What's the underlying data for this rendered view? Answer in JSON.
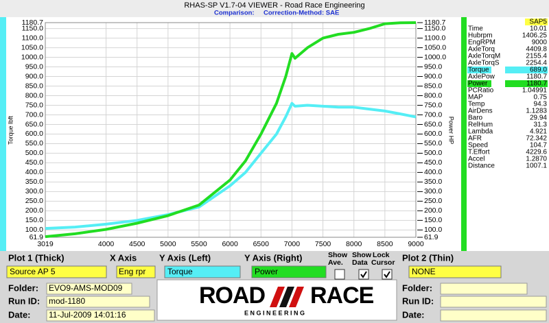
{
  "window": {
    "title": "RHAS-SP V1.7-04  VIEWER - Road Race Engineering",
    "comparison": "Comparison:",
    "correction": "Correction-Method: SAE"
  },
  "chart_data": {
    "type": "line",
    "x": [
      3019,
      3500,
      4000,
      4500,
      5000,
      5500,
      6000,
      6250,
      6500,
      6750,
      6900,
      7000,
      7050,
      7250,
      7500,
      7750,
      8000,
      8250,
      8500,
      8750,
      9000
    ],
    "series": [
      {
        "name": "Torque",
        "color": "#55eef5",
        "values": [
          108,
          115,
          130,
          150,
          180,
          220,
          330,
          400,
          500,
          600,
          690,
          760,
          745,
          750,
          745,
          740,
          740,
          730,
          720,
          705,
          689
        ]
      },
      {
        "name": "Power",
        "color": "#22dd22",
        "axis": "y2",
        "values": [
          65,
          80,
          103,
          135,
          175,
          230,
          360,
          460,
          600,
          760,
          900,
          1020,
          995,
          1050,
          1100,
          1120,
          1130,
          1150,
          1175,
          1180,
          1180.7
        ]
      }
    ],
    "xlim": [
      3019,
      9000
    ],
    "xticks": [
      3019,
      4000,
      4500,
      5000,
      5500,
      6000,
      6500,
      7000,
      7500,
      8000,
      8500,
      9000
    ],
    "ylim": [
      61.9,
      1180.7
    ],
    "yticks": [
      61.9,
      {
        "value": 100,
        "label": "100.0"
      },
      {
        "value": 150,
        "label": "150.0"
      },
      {
        "value": 200,
        "label": "200.0"
      },
      {
        "value": 250,
        "label": "250.0"
      },
      {
        "value": 300,
        "label": "300.0"
      },
      {
        "value": 350,
        "label": "350.0"
      },
      {
        "value": 400,
        "label": "400.0"
      },
      {
        "value": 450,
        "label": "450.0"
      },
      {
        "value": 500,
        "label": "500.0"
      },
      {
        "value": 550,
        "label": "550.0"
      },
      {
        "value": 600,
        "label": "600.0"
      },
      {
        "value": 650,
        "label": "650.0"
      },
      {
        "value": 700,
        "label": "700.0"
      },
      {
        "value": 750,
        "label": "750.0"
      },
      {
        "value": 800,
        "label": "800.0"
      },
      {
        "value": 850,
        "label": "850.0"
      },
      {
        "value": 900,
        "label": "900.0"
      },
      {
        "value": 950,
        "label": "950.0"
      },
      {
        "value": 1000,
        "label": "1000.0"
      },
      {
        "value": 1050,
        "label": "1050.0"
      },
      {
        "value": 1100,
        "label": "1100.0"
      },
      {
        "value": 1150,
        "label": "1150.0"
      },
      1180.7
    ],
    "y2lim": [
      61.9,
      1180.7
    ],
    "y2ticks": [
      61.9,
      {
        "value": 100,
        "label": "100.0"
      },
      {
        "value": 150,
        "label": "150.0"
      },
      {
        "value": 200,
        "label": "200.0"
      },
      {
        "value": 250,
        "label": "250.0"
      },
      {
        "value": 300,
        "label": "300.0"
      },
      {
        "value": 350,
        "label": "350.0"
      },
      {
        "value": 400,
        "label": "400.0"
      },
      {
        "value": 450,
        "label": "450.0"
      },
      {
        "value": 500,
        "label": "500.0"
      },
      {
        "value": 550,
        "label": "550.0"
      },
      {
        "value": 600,
        "label": "600.0"
      },
      {
        "value": 650,
        "label": "650.0"
      },
      {
        "value": 700,
        "label": "700.0"
      },
      {
        "value": 750,
        "label": "750.0"
      },
      {
        "value": 800,
        "label": "800.0"
      },
      {
        "value": 850,
        "label": "850.0"
      },
      {
        "value": 900,
        "label": "900.0"
      },
      {
        "value": 950,
        "label": "950.0"
      },
      {
        "value": 1000,
        "label": "1000.0"
      },
      {
        "value": 1050,
        "label": "1050.0"
      },
      {
        "value": 1100,
        "label": "1100.0"
      },
      {
        "value": 1150,
        "label": "1150.0"
      },
      1180.7
    ],
    "y_label": "Torque lbft",
    "y2_label": "Power HP",
    "grid": true
  },
  "readout": {
    "header": "SAP5",
    "rows": [
      [
        "Time",
        "10.01"
      ],
      [
        "Hubrpm",
        "1406.25"
      ],
      [
        "EngRPM",
        "9000"
      ],
      [
        "AxleTorq",
        "4409.8"
      ],
      [
        "AxleTorqM",
        "2155.4"
      ],
      [
        "AxleTorqS",
        "2254.4"
      ],
      [
        "Torque",
        "689.0"
      ],
      [
        "AxlePow",
        "1180.7"
      ],
      [
        "Power",
        "1180.7"
      ],
      [
        "PCRatio",
        "1.04991"
      ],
      [
        "MAP",
        "0.75"
      ],
      [
        "Temp",
        "94.3"
      ],
      [
        "AirDens",
        "1.1283"
      ],
      [
        "Baro",
        "29.94"
      ],
      [
        "RelHum",
        "31.3"
      ],
      [
        "Lambda",
        "4.921"
      ],
      [
        "AFR",
        "72.342"
      ],
      [
        "Speed",
        "104.7"
      ],
      [
        "T.Effort",
        "4229.6"
      ],
      [
        "Accel",
        "1.2870"
      ],
      [
        "Distance",
        "1007.1"
      ]
    ]
  },
  "controls": {
    "plot1_label": "Plot 1 (Thick)",
    "plot1_value": "Source AP 5",
    "x_axis_label": "X Axis",
    "x_axis_value": "Eng rpr",
    "y_left_label": "Y Axis (Left)",
    "y_right_label": "Y Axis (Right)",
    "show_ave": [
      "Show",
      "Ave."
    ],
    "show_data": [
      "Show",
      "Data"
    ],
    "lock_cursor": [
      "Lock",
      "Cursor"
    ],
    "checked": [
      false,
      true,
      true
    ],
    "plot2_label": "Plot 2 (Thin)",
    "plot2_value": "NONE"
  },
  "run1": {
    "folder_label": "Folder:",
    "folder": "EVO9-AMS-MOD09",
    "run_label": "Run ID:",
    "run": "mod-1180",
    "date_label": "Date:",
    "date": "11-Jul-2009  14:01:16"
  },
  "run2": {
    "folder_label": "Folder:",
    "run_label": "Run ID:",
    "date_label": "Date:"
  },
  "logo": {
    "word1": "ROAD",
    "word2": "RACE",
    "tagline": "E N G I N E E R I N G"
  }
}
